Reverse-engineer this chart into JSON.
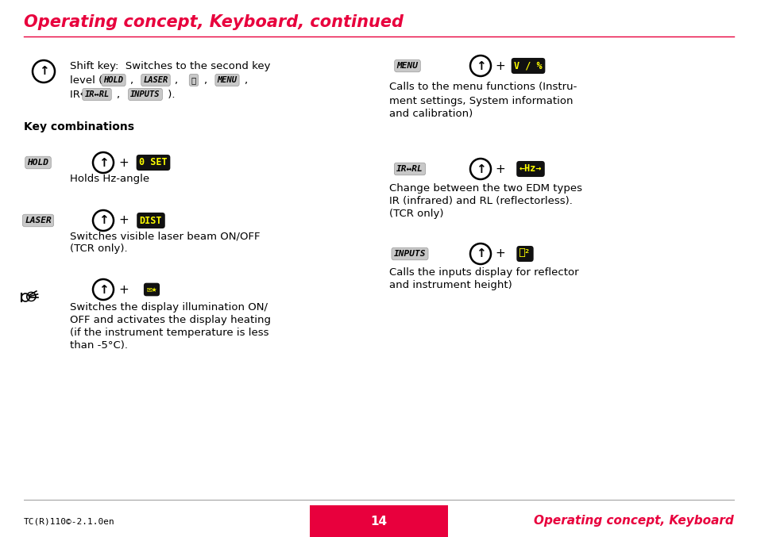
{
  "title": "Operating concept, Keyboard, continued",
  "title_color": "#e8003d",
  "bg_color": "#ffffff",
  "footer_left": "TC(R)110©-2.1.0en",
  "footer_center": "14",
  "footer_right": "Operating concept, Keyboard",
  "footer_bar_color": "#e8003d",
  "line_color": "#e8003d",
  "text_color": "#000000",
  "grey_badge_color": "#c8c8c8",
  "black_badge_color": "#111111",
  "yellow_text": "#ffff00"
}
